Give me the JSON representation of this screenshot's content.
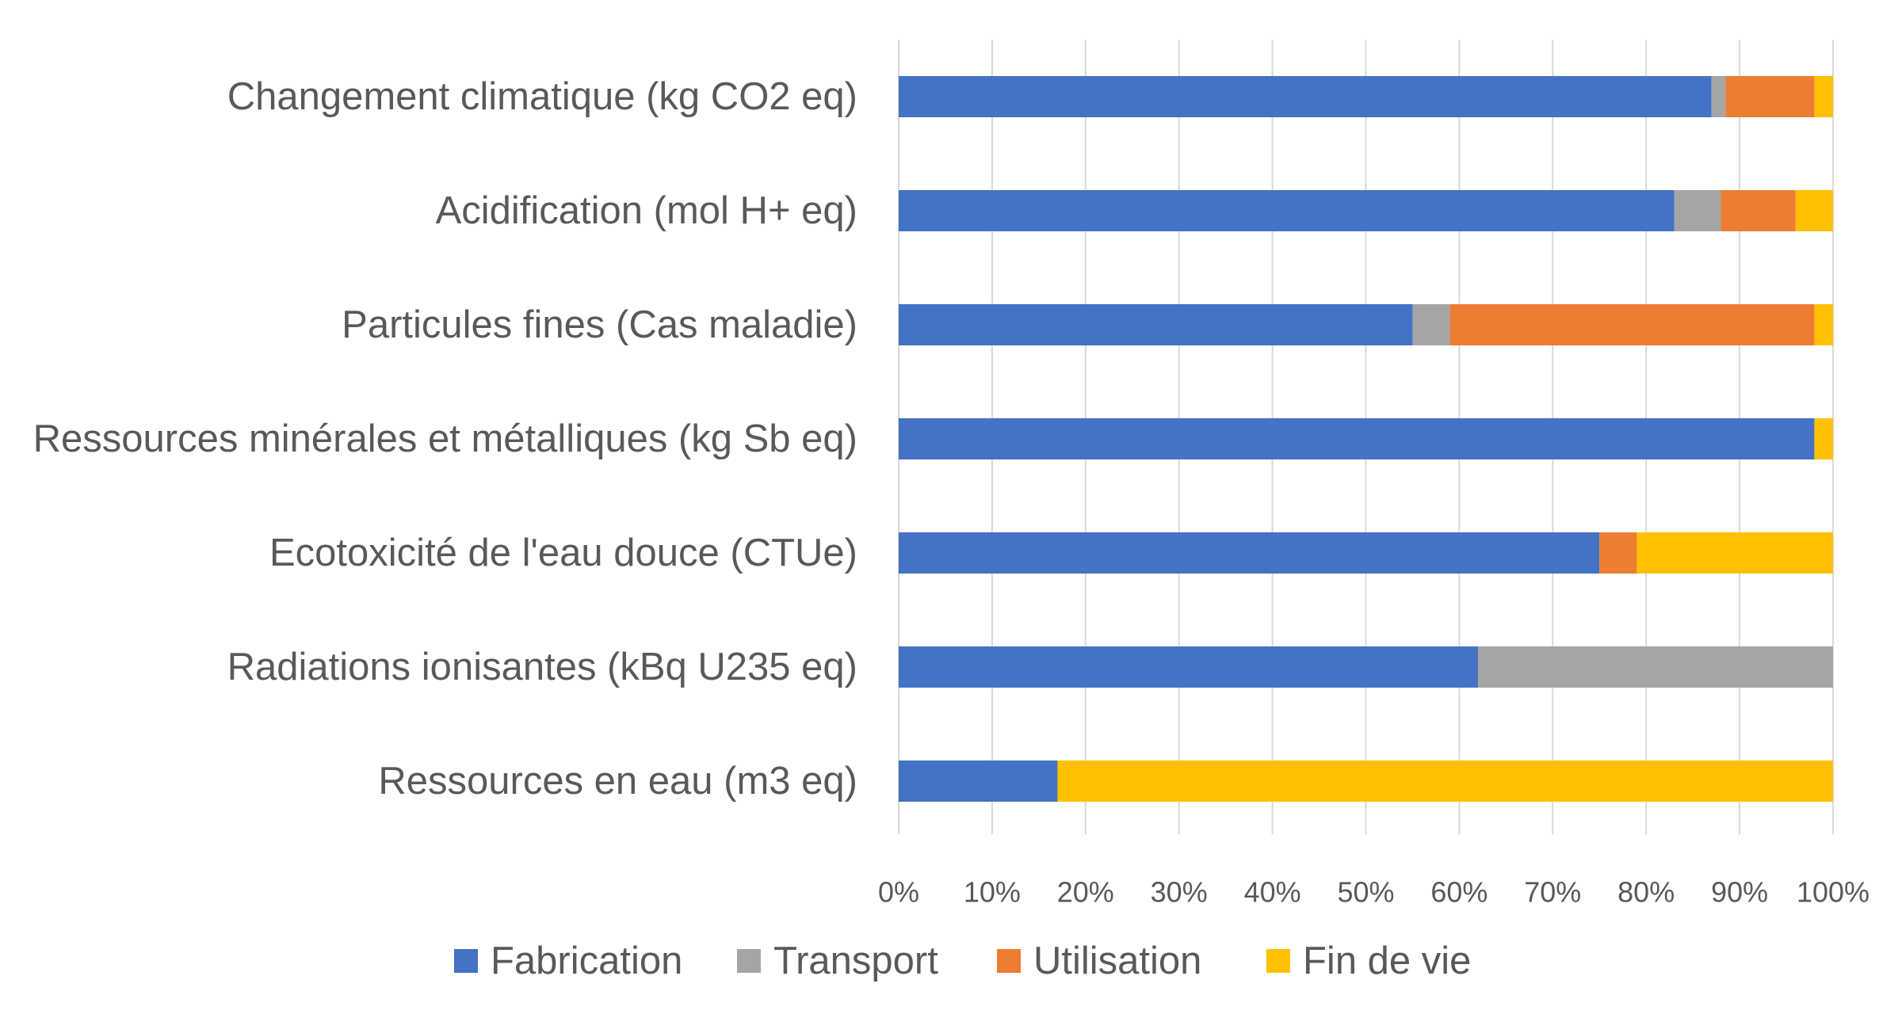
{
  "chart_data": {
    "type": "bar",
    "orientation": "horizontal",
    "stacked": "percent",
    "title": "",
    "xlabel": "",
    "ylabel": "",
    "categories": [
      "Changement climatique (kg CO2 eq)",
      "Acidification (mol H+ eq)",
      "Particules fines (Cas maladie)",
      "Ressources minérales et métalliques (kg Sb eq)",
      "Ecotoxicité de l'eau douce (CTUe)",
      "Radiations ionisantes (kBq U235 eq)",
      "Ressources en eau (m3 eq)"
    ],
    "series": [
      {
        "name": "Fabrication",
        "color": "#4472c4",
        "values": [
          87,
          83,
          55,
          98,
          75,
          62,
          17
        ]
      },
      {
        "name": "Transport",
        "color": "#a5a5a5",
        "values": [
          1.5,
          5,
          4,
          0,
          0,
          38,
          0
        ]
      },
      {
        "name": "Utilisation",
        "color": "#ed7d31",
        "values": [
          9.5,
          8,
          39,
          0,
          4,
          0,
          0
        ]
      },
      {
        "name": "Fin de vie",
        "color": "#ffc000",
        "values": [
          2,
          4,
          2,
          2,
          21,
          0,
          83
        ]
      }
    ],
    "xlim": [
      0,
      100
    ],
    "xticks": [
      "0%",
      "10%",
      "20%",
      "30%",
      "40%",
      "50%",
      "60%",
      "70%",
      "80%",
      "90%",
      "100%"
    ],
    "grid": "vertical",
    "legend": "bottom"
  }
}
